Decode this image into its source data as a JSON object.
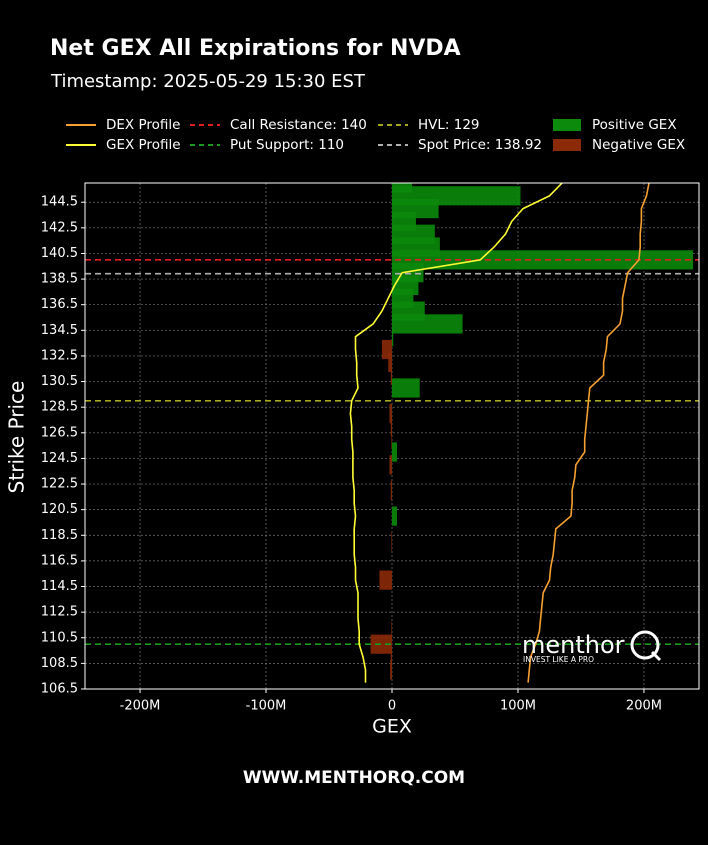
{
  "chart_data": {
    "type": "bar",
    "orientation": "horizontal",
    "title": "Net GEX All Expirations for NVDA",
    "subtitle": "Timestamp: 2025-05-29 15:30 EST",
    "x_label": "GEX",
    "y_label": "Strike Price",
    "footer": "WWW.MENTHORQ.COM",
    "watermark": {
      "brand": "menthor",
      "tagline": "INVEST LIKE A PRO"
    },
    "strikes": [
      107,
      108,
      109,
      110,
      111,
      112,
      113,
      114,
      115,
      116,
      117,
      118,
      119,
      120,
      121,
      122,
      123,
      124,
      125,
      126,
      127,
      128,
      129,
      130,
      131,
      132,
      133,
      134,
      135,
      136,
      137,
      138,
      139,
      140,
      141,
      142,
      143,
      144,
      145,
      146
    ],
    "bars": {
      "values": [
        0,
        -1.5,
        -1,
        -17,
        -0.5,
        0,
        0,
        0,
        -10,
        0,
        0,
        -0.5,
        0,
        4,
        0,
        -1,
        0,
        -2,
        4,
        -0.5,
        -1,
        -2,
        0,
        22,
        -1,
        -3,
        -8,
        1,
        56,
        26,
        17,
        21,
        25,
        239,
        38,
        34,
        19,
        37,
        102,
        16
      ],
      "legend": [
        {
          "name": "Positive GEX",
          "color": "#0b8a0b"
        },
        {
          "name": "Negative GEX",
          "color": "#8a2a08"
        }
      ]
    },
    "lines": [
      {
        "name": "DEX Profile",
        "color": "#f5a030",
        "values": [
          108,
          109,
          110,
          114,
          117,
          118,
          119,
          120,
          125,
          126,
          128,
          129,
          130,
          142,
          143,
          143,
          145,
          146,
          153,
          153,
          154,
          155,
          156,
          157,
          168,
          168,
          170,
          171,
          181,
          183,
          183,
          185,
          187,
          196,
          197,
          197,
          198,
          198,
          202,
          204
        ]
      },
      {
        "name": "GEX Profile",
        "color": "#ffff33",
        "values": [
          -21,
          -21,
          -23,
          -26,
          -26,
          -27,
          -27,
          -27,
          -29,
          -29,
          -30,
          -30,
          -30,
          -29,
          -30,
          -30,
          -31,
          -31,
          -31,
          -32,
          -32,
          -33,
          -32,
          -27,
          -28,
          -28,
          -29,
          -29,
          -15,
          -8,
          -3,
          2,
          8,
          70,
          81,
          90,
          95,
          104,
          125,
          135
        ]
      }
    ],
    "reference_lines": [
      {
        "name": "Call Resistance: 140",
        "value": 140,
        "color": "#e02020"
      },
      {
        "name": "Put Support: 110",
        "value": 110,
        "color": "#1a9a1a"
      },
      {
        "name": "HVL: 129",
        "value": 129,
        "color": "#a8a820"
      },
      {
        "name": "Spot Price: 138.92",
        "value": 138.92,
        "color": "#b0b0b0"
      }
    ],
    "xlim": [
      -243.7,
      243.7
    ],
    "xticks": [
      {
        "value": -200,
        "label": "-200M"
      },
      {
        "value": -100,
        "label": "-100M"
      },
      0,
      {
        "value": 100,
        "label": "100M"
      },
      {
        "value": 200,
        "label": "200M"
      }
    ],
    "ylim": [
      106.5,
      146
    ],
    "yticks": [
      106.5,
      108.5,
      110.5,
      112.5,
      114.5,
      116.5,
      118.5,
      120.5,
      122.5,
      124.5,
      126.5,
      128.5,
      130.5,
      132.5,
      134.5,
      136.5,
      138.5,
      140.5,
      142.5,
      144.5
    ],
    "grid": true
  }
}
